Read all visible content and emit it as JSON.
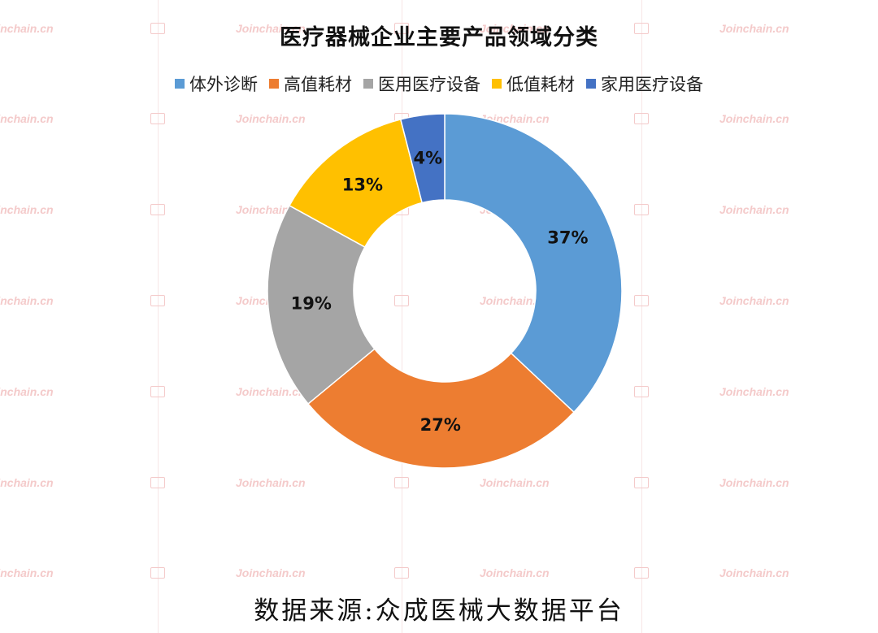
{
  "chart_data": {
    "type": "pie",
    "title": "医疗器械企业主要产品领域分类",
    "categories": [
      "体外诊断",
      "高值耗材",
      "医用医疗设备",
      "低值耗材",
      "家用医疗设备"
    ],
    "values": [
      37,
      27,
      19,
      13,
      4
    ],
    "value_labels": [
      "37%",
      "27%",
      "19%",
      "13%",
      "4%"
    ],
    "colors": [
      "#5b9bd5",
      "#ed7d31",
      "#a5a5a5",
      "#ffc000",
      "#4472c4"
    ],
    "donut": true,
    "legend_position": "top"
  },
  "source_note": "数据来源:众成医械大数据平台",
  "watermark": {
    "text": "Joinchain.cn"
  }
}
